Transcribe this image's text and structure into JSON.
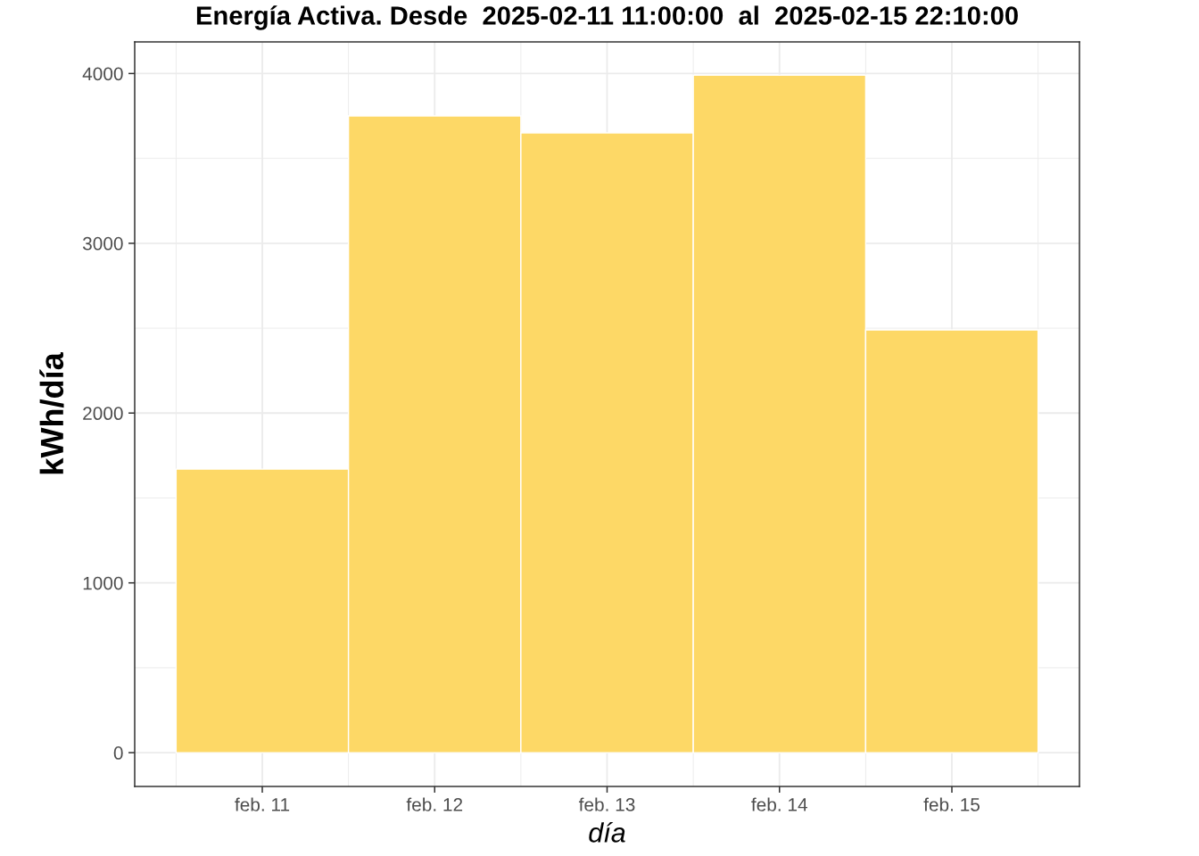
{
  "chart_data": {
    "type": "bar",
    "title": "Energía Activa. Desde  2025-02-11 11:00:00  al  2025-02-15 22:10:00",
    "xlabel": "día",
    "ylabel": "kWh/día",
    "categories": [
      "feb. 11",
      "feb. 12",
      "feb. 13",
      "feb. 14",
      "feb. 15"
    ],
    "values": [
      1670,
      3750,
      3650,
      3990,
      2490
    ],
    "color": "#fdd866",
    "ylim": [
      -199,
      4186
    ],
    "yticks": [
      0,
      1000,
      2000,
      3000,
      4000
    ],
    "grid": true
  }
}
